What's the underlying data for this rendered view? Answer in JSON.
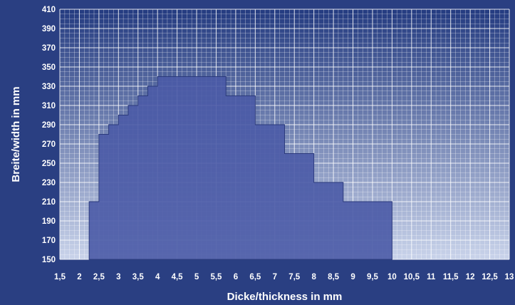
{
  "chart_data": {
    "type": "area",
    "title": "",
    "xlabel": "Dicke/thickness in mm",
    "ylabel": "Breite/width in mm",
    "x_ticks": [
      "1,5",
      "2",
      "2,5",
      "3",
      "3,5",
      "4",
      "4,5",
      "5",
      "5,5",
      "6",
      "6,5",
      "7",
      "7,5",
      "8",
      "8,5",
      "9",
      "9,5",
      "10",
      "10,5",
      "11",
      "11,5",
      "12",
      "12,5",
      "13"
    ],
    "y_ticks": [
      "150",
      "170",
      "190",
      "210",
      "230",
      "250",
      "270",
      "290",
      "310",
      "330",
      "350",
      "370",
      "390",
      "410"
    ],
    "xlim": [
      1.5,
      13
    ],
    "ylim": [
      150,
      410
    ],
    "grid": true,
    "step_profile": [
      {
        "x": 2.25,
        "y": 210
      },
      {
        "x": 2.5,
        "y": 280
      },
      {
        "x": 2.75,
        "y": 290
      },
      {
        "x": 3.0,
        "y": 300
      },
      {
        "x": 3.25,
        "y": 310
      },
      {
        "x": 3.5,
        "y": 320
      },
      {
        "x": 3.75,
        "y": 330
      },
      {
        "x": 4.0,
        "y": 340
      },
      {
        "x": 5.75,
        "y": 320
      },
      {
        "x": 6.5,
        "y": 290
      },
      {
        "x": 7.25,
        "y": 260
      },
      {
        "x": 8.0,
        "y": 230
      },
      {
        "x": 8.75,
        "y": 210
      },
      {
        "x": 10.0,
        "y": 150
      }
    ],
    "colors": {
      "background": "#2a3f82",
      "plot_top": "#243b80",
      "plot_bottom": "#c9d3ea",
      "region_fill": "#4a5aa6",
      "grid": "#ffffff"
    }
  }
}
